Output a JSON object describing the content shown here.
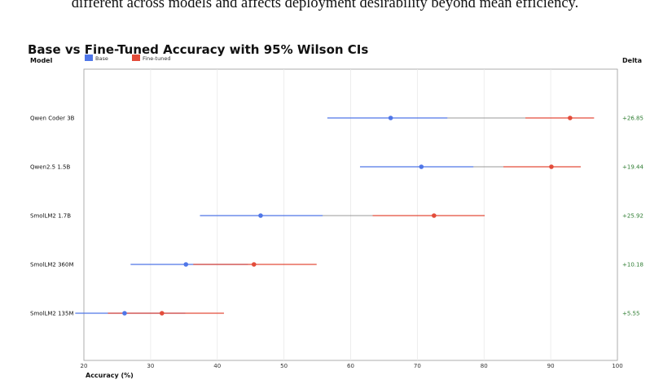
{
  "caption": "different across models and affects deployment desirability beyond mean efficiency.",
  "chart_data": {
    "type": "dot-interval",
    "title": "Base vs Fine-Tuned Accuracy with 95% Wilson CIs",
    "xlabel": "Accuracy (%)",
    "ylabel": "Model",
    "delta_header": "Delta",
    "xlim": [
      20,
      100
    ],
    "xticks": [
      20,
      30,
      40,
      50,
      60,
      70,
      80,
      90,
      100
    ],
    "grid": "vertical",
    "legend_position": "top-left",
    "series": [
      {
        "name": "Base",
        "color": "#4f76e8"
      },
      {
        "name": "Fine-tuned",
        "color": "#e34c3a"
      }
    ],
    "rows": [
      {
        "model": "Qwen Coder 3B",
        "base": 66.0,
        "base_ci": [
          56.5,
          74.5
        ],
        "ft": 92.9,
        "ft_ci": [
          86.2,
          96.5
        ],
        "delta": "+26.85"
      },
      {
        "model": "Qwen2.5 1.5B",
        "base": 70.6,
        "base_ci": [
          61.4,
          78.4
        ],
        "ft": 90.1,
        "ft_ci": [
          82.9,
          94.5
        ],
        "delta": "+19.44"
      },
      {
        "model": "SmolLM2 1.7B",
        "base": 46.5,
        "base_ci": [
          37.4,
          55.8
        ],
        "ft": 72.5,
        "ft_ci": [
          63.3,
          80.1
        ],
        "delta": "+25.92"
      },
      {
        "model": "SmolLM2 360M",
        "base": 35.3,
        "base_ci": [
          27.0,
          44.6
        ],
        "ft": 45.5,
        "ft_ci": [
          36.4,
          54.9
        ],
        "delta": "+10.18"
      },
      {
        "model": "SmolLM2 135M",
        "base": 26.1,
        "base_ci": [
          18.7,
          35.2
        ],
        "ft": 31.7,
        "ft_ci": [
          23.6,
          41.0
        ],
        "delta": "+5.55"
      }
    ]
  }
}
